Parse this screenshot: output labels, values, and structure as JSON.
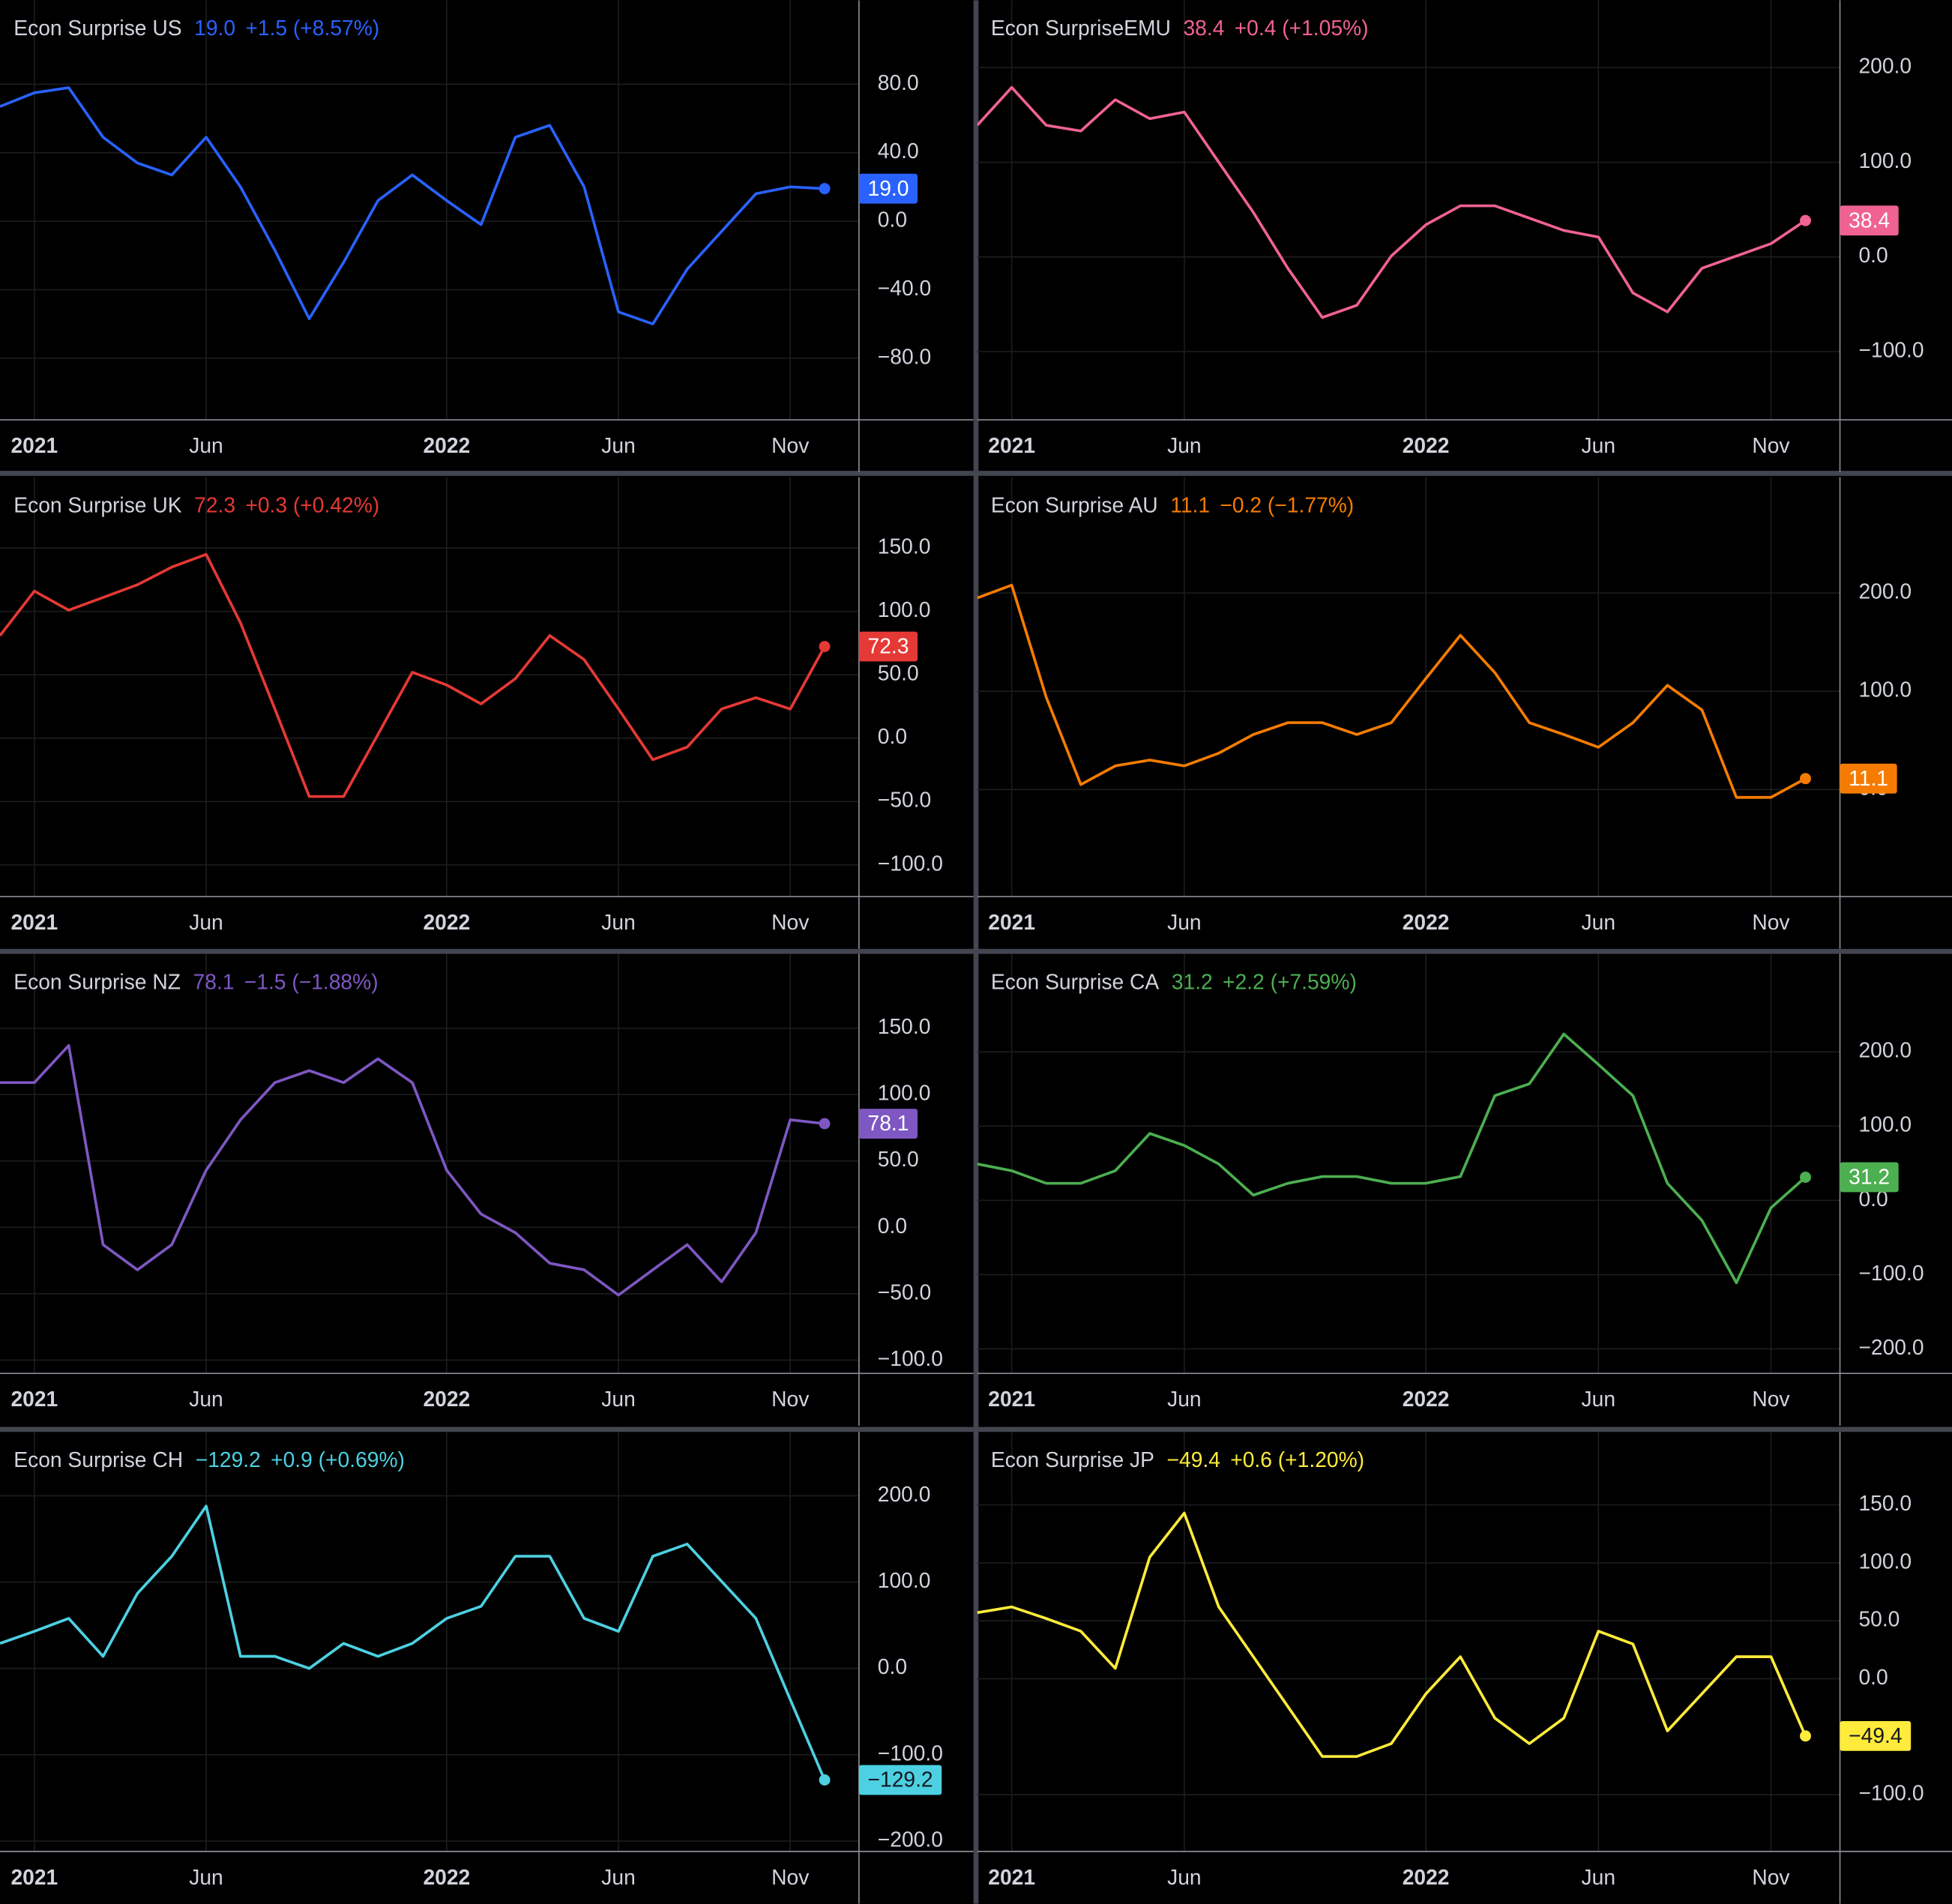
{
  "chart_data": [
    {
      "type": "line",
      "title": "Econ Surprise US",
      "last_label": "19.0",
      "change_label": "+1.5 (+8.57%)",
      "color": "#2962ff",
      "x": [
        "2020-12",
        "2021-01",
        "2021-02",
        "2021-03",
        "2021-04",
        "2021-05",
        "2021-06",
        "2021-07",
        "2021-08",
        "2021-09",
        "2021-10",
        "2021-11",
        "2021-12",
        "2022-01",
        "2022-02",
        "2022-03",
        "2022-04",
        "2022-05",
        "2022-06",
        "2022-07",
        "2022-08",
        "2022-09",
        "2022-10",
        "2022-11",
        "2022-12"
      ],
      "values": [
        67,
        75,
        78,
        49,
        34,
        27,
        49,
        20,
        -17,
        -57,
        -24,
        12,
        27,
        12,
        -2,
        49,
        56,
        20,
        -53,
        -60,
        -28,
        -6,
        16,
        20,
        19.0
      ],
      "xlim": [
        "2020-12",
        "2023-01"
      ],
      "xticks": [
        {
          "value": "2021-01",
          "label": "2021"
        },
        {
          "value": "2021-06",
          "label": "Jun"
        },
        {
          "value": "2022-01",
          "label": "2022"
        },
        {
          "value": "2022-06",
          "label": "Jun"
        },
        {
          "value": "2022-11",
          "label": "Nov"
        }
      ],
      "ylim": [
        -116,
        129
      ],
      "yticks": [
        {
          "value": 80,
          "label": "80.0"
        },
        {
          "value": 40,
          "label": "40.0"
        },
        {
          "value": 0,
          "label": "0.0"
        },
        {
          "value": -40,
          "label": "−40.0"
        },
        {
          "value": -80,
          "label": "−80.0"
        }
      ],
      "grid": true
    },
    {
      "type": "line",
      "title": "Econ SurpriseEMU",
      "last_label": "38.4",
      "change_label": "+0.4 (+1.05%)",
      "color": "#f06292",
      "x": [
        "2020-12",
        "2021-01",
        "2021-02",
        "2021-03",
        "2021-04",
        "2021-05",
        "2021-06",
        "2021-07",
        "2021-08",
        "2021-09",
        "2021-10",
        "2021-11",
        "2021-12",
        "2022-01",
        "2022-02",
        "2022-03",
        "2022-04",
        "2022-05",
        "2022-06",
        "2022-07",
        "2022-08",
        "2022-09",
        "2022-10",
        "2022-11",
        "2022-12"
      ],
      "values": [
        139,
        179,
        139,
        133,
        166,
        146,
        153,
        100,
        47,
        -12,
        -64,
        -51,
        1,
        34,
        54,
        54,
        41,
        28,
        21,
        -38,
        -58,
        -12,
        1,
        14,
        38.4
      ],
      "xlim": [
        "2020-12",
        "2023-01"
      ],
      "xticks": [
        {
          "value": "2021-01",
          "label": "2021"
        },
        {
          "value": "2021-06",
          "label": "Jun"
        },
        {
          "value": "2022-01",
          "label": "2022"
        },
        {
          "value": "2022-06",
          "label": "Jun"
        },
        {
          "value": "2022-11",
          "label": "Nov"
        }
      ],
      "ylim": [
        -172,
        271
      ],
      "yticks": [
        {
          "value": 200,
          "label": "200.0"
        },
        {
          "value": 100,
          "label": "100.0"
        },
        {
          "value": 0,
          "label": "0.0"
        },
        {
          "value": -100,
          "label": "−100.0"
        }
      ],
      "grid": true
    },
    {
      "type": "line",
      "title": "Econ Surprise UK",
      "last_label": "72.3",
      "change_label": "+0.3 (+0.42%)",
      "color": "#e53935",
      "x": [
        "2020-12",
        "2021-01",
        "2021-02",
        "2021-03",
        "2021-04",
        "2021-05",
        "2021-06",
        "2021-07",
        "2021-08",
        "2021-09",
        "2021-10",
        "2021-11",
        "2021-12",
        "2022-01",
        "2022-02",
        "2022-03",
        "2022-04",
        "2022-05",
        "2022-06",
        "2022-07",
        "2022-08",
        "2022-09",
        "2022-10",
        "2022-11",
        "2022-12"
      ],
      "values": [
        81,
        116,
        101,
        111,
        121,
        135,
        145,
        91,
        23,
        -46,
        -46,
        3,
        52,
        42,
        27,
        47,
        81,
        62,
        23,
        -17,
        -7,
        23,
        32,
        23,
        72.3
      ],
      "xlim": [
        "2020-12",
        "2023-01"
      ],
      "xticks": [
        {
          "value": "2021-01",
          "label": "2021"
        },
        {
          "value": "2021-06",
          "label": "Jun"
        },
        {
          "value": "2022-01",
          "label": "2022"
        },
        {
          "value": "2022-06",
          "label": "Jun"
        },
        {
          "value": "2022-11",
          "label": "Nov"
        }
      ],
      "ylim": [
        -125,
        206
      ],
      "yticks": [
        {
          "value": 150,
          "label": "150.0"
        },
        {
          "value": 100,
          "label": "100.0"
        },
        {
          "value": 50,
          "label": "50.0"
        },
        {
          "value": 0,
          "label": "0.0"
        },
        {
          "value": -50,
          "label": "−50.0"
        },
        {
          "value": -100,
          "label": "−100.0"
        }
      ],
      "grid": true
    },
    {
      "type": "line",
      "title": "Econ Surprise AU",
      "last_label": "11.1",
      "change_label": "−0.2 (−1.77%)",
      "color": "#f57c00",
      "x": [
        "2020-12",
        "2021-01",
        "2021-02",
        "2021-03",
        "2021-04",
        "2021-05",
        "2021-06",
        "2021-07",
        "2021-08",
        "2021-09",
        "2021-10",
        "2021-11",
        "2021-12",
        "2022-01",
        "2022-02",
        "2022-03",
        "2022-04",
        "2022-05",
        "2022-06",
        "2022-07",
        "2022-08",
        "2022-09",
        "2022-10",
        "2022-11",
        "2022-12"
      ],
      "values": [
        195,
        208,
        94,
        5,
        24,
        30,
        24,
        37,
        56,
        68,
        68,
        56,
        68,
        113,
        157,
        119,
        68,
        56,
        43,
        68,
        106,
        81,
        -8,
        -8,
        11.1
      ],
      "xlim": [
        "2020-12",
        "2023-01"
      ],
      "xticks": [
        {
          "value": "2021-01",
          "label": "2021"
        },
        {
          "value": "2021-06",
          "label": "Jun"
        },
        {
          "value": "2022-01",
          "label": "2022"
        },
        {
          "value": "2022-06",
          "label": "Jun"
        },
        {
          "value": "2022-11",
          "label": "Nov"
        }
      ],
      "ylim": [
        -109,
        318
      ],
      "yticks": [
        {
          "value": 200,
          "label": "200.0"
        },
        {
          "value": 100,
          "label": "100.0"
        },
        {
          "value": 0,
          "label": "0.0"
        }
      ],
      "grid": true
    },
    {
      "type": "line",
      "title": "Econ Surprise NZ",
      "last_label": "78.1",
      "change_label": "−1.5 (−1.88%)",
      "color": "#7e57c2",
      "x": [
        "2020-12",
        "2021-01",
        "2021-02",
        "2021-03",
        "2021-04",
        "2021-05",
        "2021-06",
        "2021-07",
        "2021-08",
        "2021-09",
        "2021-10",
        "2021-11",
        "2021-12",
        "2022-01",
        "2022-02",
        "2022-03",
        "2022-04",
        "2022-05",
        "2022-06",
        "2022-07",
        "2022-08",
        "2022-09",
        "2022-10",
        "2022-11",
        "2022-12"
      ],
      "values": [
        109,
        109,
        137,
        -13,
        -32,
        -13,
        43,
        81,
        109,
        118,
        109,
        127,
        109,
        43,
        10,
        -4,
        -27,
        -32,
        -51,
        -32,
        -13,
        -41,
        -4,
        81,
        78.1
      ],
      "xlim": [
        "2020-12",
        "2023-01"
      ],
      "xticks": [
        {
          "value": "2021-01",
          "label": "2021"
        },
        {
          "value": "2021-06",
          "label": "Jun"
        },
        {
          "value": "2022-01",
          "label": "2022"
        },
        {
          "value": "2022-06",
          "label": "Jun"
        },
        {
          "value": "2022-11",
          "label": "Nov"
        }
      ],
      "ylim": [
        -110,
        206
      ],
      "yticks": [
        {
          "value": 150,
          "label": "150.0"
        },
        {
          "value": 100,
          "label": "100.0"
        },
        {
          "value": 50,
          "label": "50.0"
        },
        {
          "value": 0,
          "label": "0.0"
        },
        {
          "value": -50,
          "label": "−50.0"
        },
        {
          "value": -100,
          "label": "−100.0"
        }
      ],
      "grid": true
    },
    {
      "type": "line",
      "title": "Econ Surprise CA",
      "last_label": "31.2",
      "change_label": "+2.2 (+7.59%)",
      "color": "#4caf50",
      "x": [
        "2020-12",
        "2021-01",
        "2021-02",
        "2021-03",
        "2021-04",
        "2021-05",
        "2021-06",
        "2021-07",
        "2021-08",
        "2021-09",
        "2021-10",
        "2021-11",
        "2021-12",
        "2022-01",
        "2022-02",
        "2022-03",
        "2022-04",
        "2022-05",
        "2022-06",
        "2022-07",
        "2022-08",
        "2022-09",
        "2022-10",
        "2022-11",
        "2022-12"
      ],
      "values": [
        49,
        40,
        23,
        23,
        40,
        90,
        74,
        49,
        7,
        23,
        32,
        32,
        23,
        23,
        32,
        141,
        157,
        224,
        183,
        141,
        23,
        -27,
        -111,
        -10,
        31.2
      ],
      "xlim": [
        "2020-12",
        "2023-01"
      ],
      "xticks": [
        {
          "value": "2021-01",
          "label": "2021"
        },
        {
          "value": "2021-06",
          "label": "Jun"
        },
        {
          "value": "2022-01",
          "label": "2022"
        },
        {
          "value": "2022-06",
          "label": "Jun"
        },
        {
          "value": "2022-11",
          "label": "Nov"
        }
      ],
      "ylim": [
        -233,
        332
      ],
      "yticks": [
        {
          "value": 200,
          "label": "200.0"
        },
        {
          "value": 100,
          "label": "100.0"
        },
        {
          "value": 0,
          "label": "0.0"
        },
        {
          "value": -100,
          "label": "−100.0"
        },
        {
          "value": -200,
          "label": "−200.0"
        }
      ],
      "grid": true
    },
    {
      "type": "line",
      "title": "Econ Surprise CH",
      "last_label": "−129.2",
      "change_label": "+0.9 (+0.69%)",
      "color": "#4dd0e1",
      "x": [
        "2020-12",
        "2021-01",
        "2021-02",
        "2021-03",
        "2021-04",
        "2021-05",
        "2021-06",
        "2021-07",
        "2021-08",
        "2021-09",
        "2021-10",
        "2021-11",
        "2021-12",
        "2022-01",
        "2022-02",
        "2022-03",
        "2022-04",
        "2022-05",
        "2022-06",
        "2022-07",
        "2022-08",
        "2022-09",
        "2022-10",
        "2022-11",
        "2022-12"
      ],
      "values": [
        29,
        43,
        58,
        14,
        87,
        130,
        188,
        14,
        14,
        0,
        29,
        14,
        29,
        58,
        72,
        130,
        130,
        58,
        43,
        130,
        144,
        101,
        58,
        -36,
        -129.2
      ],
      "xlim": [
        "2020-12",
        "2023-01"
      ],
      "xticks": [
        {
          "value": "2021-01",
          "label": "2021"
        },
        {
          "value": "2021-06",
          "label": "Jun"
        },
        {
          "value": "2022-01",
          "label": "2022"
        },
        {
          "value": "2022-06",
          "label": "Jun"
        },
        {
          "value": "2022-11",
          "label": "Nov"
        }
      ],
      "ylim": [
        -212,
        274
      ],
      "yticks": [
        {
          "value": 200,
          "label": "200.0"
        },
        {
          "value": 100,
          "label": "100.0"
        },
        {
          "value": 0,
          "label": "0.0"
        },
        {
          "value": -100,
          "label": "−100.0"
        },
        {
          "value": -200,
          "label": "−200.0"
        }
      ],
      "grid": true
    },
    {
      "type": "line",
      "title": "Econ Surprise JP",
      "last_label": "−49.4",
      "change_label": "+0.6 (+1.20%)",
      "color": "#ffeb3b",
      "x": [
        "2020-12",
        "2021-01",
        "2021-02",
        "2021-03",
        "2021-04",
        "2021-05",
        "2021-06",
        "2021-07",
        "2021-08",
        "2021-09",
        "2021-10",
        "2021-11",
        "2021-12",
        "2022-01",
        "2022-02",
        "2022-03",
        "2022-04",
        "2022-05",
        "2022-06",
        "2022-07",
        "2022-08",
        "2022-09",
        "2022-10",
        "2022-11",
        "2022-12"
      ],
      "values": [
        57,
        62,
        52,
        41,
        9,
        105,
        143,
        62,
        19,
        -24,
        -67,
        -67,
        -56,
        -13,
        19,
        -34,
        -56,
        -34,
        41,
        30,
        -45,
        -13,
        19,
        19,
        -49.4
      ],
      "xlim": [
        "2020-12",
        "2023-01"
      ],
      "xticks": [
        {
          "value": "2021-01",
          "label": "2021"
        },
        {
          "value": "2021-06",
          "label": "Jun"
        },
        {
          "value": "2022-01",
          "label": "2022"
        },
        {
          "value": "2022-06",
          "label": "Jun"
        },
        {
          "value": "2022-11",
          "label": "Nov"
        }
      ],
      "ylim": [
        -149,
        213
      ],
      "yticks": [
        {
          "value": 150,
          "label": "150.0"
        },
        {
          "value": 100,
          "label": "100.0"
        },
        {
          "value": 50,
          "label": "50.0"
        },
        {
          "value": 0,
          "label": "0.0"
        },
        {
          "value": -100,
          "label": "−100.0"
        }
      ],
      "grid": true
    }
  ]
}
